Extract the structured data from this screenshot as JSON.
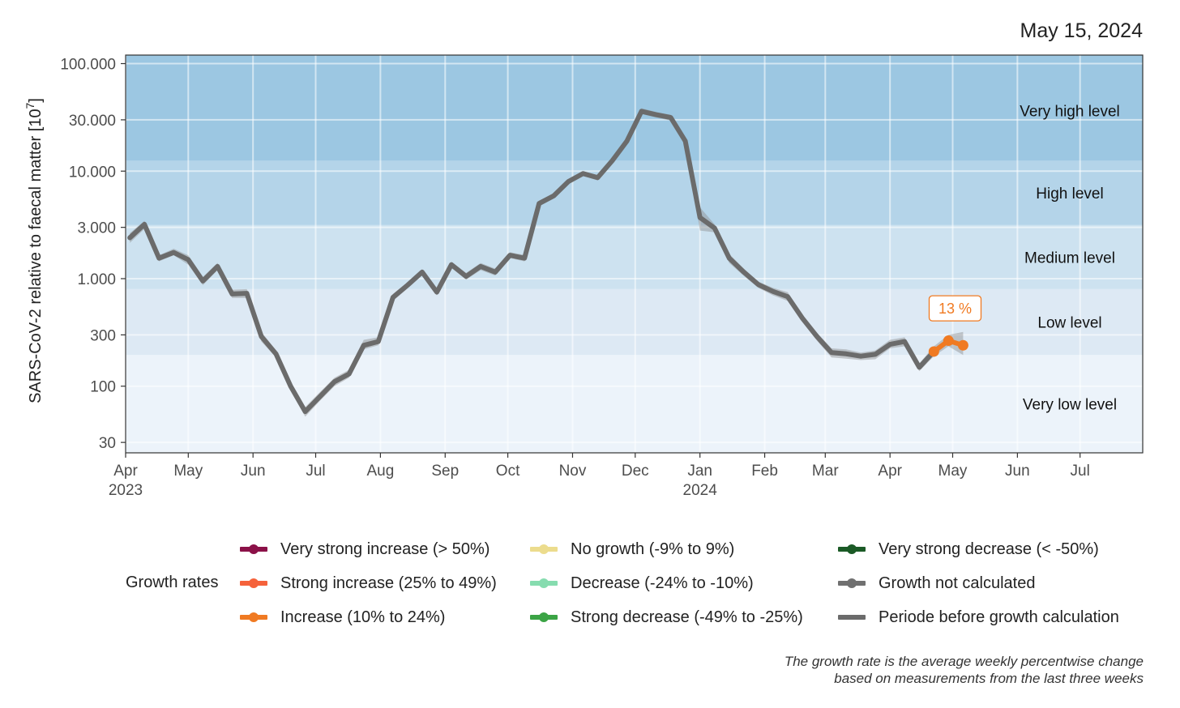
{
  "date": "May 15, 2024",
  "chart_data": {
    "type": "line",
    "title": "",
    "xlabel": "",
    "ylabel": "SARS-CoV-2 relative to faecal matter [10",
    "ylabel_sup": "7",
    "ylabel_close": "]",
    "yscale": "log",
    "ylim": [
      24,
      120000
    ],
    "xlim": [
      "2023-04-01",
      "2024-07-31"
    ],
    "yticks": [
      {
        "value": 100000,
        "label": "100.000"
      },
      {
        "value": 30000,
        "label": "30.000"
      },
      {
        "value": 10000,
        "label": "10.000"
      },
      {
        "value": 3000,
        "label": "3.000"
      },
      {
        "value": 1000,
        "label": "1.000"
      },
      {
        "value": 300,
        "label": "300"
      },
      {
        "value": 100,
        "label": "100"
      },
      {
        "value": 30,
        "label": "30"
      }
    ],
    "xticks": [
      {
        "date": "2023-04-01",
        "label": "Apr",
        "year": "2023"
      },
      {
        "date": "2023-05-01",
        "label": "May",
        "year": ""
      },
      {
        "date": "2023-06-01",
        "label": "Jun",
        "year": ""
      },
      {
        "date": "2023-07-01",
        "label": "Jul",
        "year": ""
      },
      {
        "date": "2023-08-01",
        "label": "Aug",
        "year": ""
      },
      {
        "date": "2023-09-01",
        "label": "Sep",
        "year": ""
      },
      {
        "date": "2023-10-01",
        "label": "Oct",
        "year": ""
      },
      {
        "date": "2023-11-01",
        "label": "Nov",
        "year": ""
      },
      {
        "date": "2023-12-01",
        "label": "Dec",
        "year": ""
      },
      {
        "date": "2024-01-01",
        "label": "Jan",
        "year": "2024"
      },
      {
        "date": "2024-02-01",
        "label": "Feb",
        "year": ""
      },
      {
        "date": "2024-03-01",
        "label": "Mar",
        "year": ""
      },
      {
        "date": "2024-04-01",
        "label": "Apr",
        "year": ""
      },
      {
        "date": "2024-05-01",
        "label": "May",
        "year": ""
      },
      {
        "date": "2024-06-01",
        "label": "Jun",
        "year": ""
      },
      {
        "date": "2024-07-01",
        "label": "Jul",
        "year": ""
      }
    ],
    "bands": [
      {
        "name": "Very low level",
        "from": 24,
        "to": 195,
        "color": "#ecf3fa"
      },
      {
        "name": "Low level",
        "from": 195,
        "to": 800,
        "color": "#dde9f4"
      },
      {
        "name": "Medium level",
        "from": 800,
        "to": 3150,
        "color": "#cde2f0"
      },
      {
        "name": "High level",
        "from": 3150,
        "to": 12500,
        "color": "#b4d4e9"
      },
      {
        "name": "Very high level",
        "from": 12500,
        "to": 120000,
        "color": "#9cc7e2"
      }
    ],
    "series": [
      {
        "name": "Periode before growth calculation",
        "color": "#6b6b6b",
        "x": [
          "2023-04-03",
          "2023-04-10",
          "2023-04-17",
          "2023-04-24",
          "2023-05-01",
          "2023-05-08",
          "2023-05-15",
          "2023-05-22",
          "2023-05-29",
          "2023-06-05",
          "2023-06-12",
          "2023-06-19",
          "2023-06-26",
          "2023-07-03",
          "2023-07-10",
          "2023-07-17",
          "2023-07-24",
          "2023-07-31",
          "2023-08-07",
          "2023-08-14",
          "2023-08-21",
          "2023-08-28",
          "2023-09-04",
          "2023-09-11",
          "2023-09-18",
          "2023-09-25",
          "2023-10-02",
          "2023-10-09",
          "2023-10-16",
          "2023-10-23",
          "2023-10-30",
          "2023-11-06",
          "2023-11-13",
          "2023-11-20",
          "2023-11-27",
          "2023-12-04",
          "2023-12-11",
          "2023-12-18",
          "2023-12-25",
          "2024-01-01",
          "2024-01-08",
          "2024-01-15",
          "2024-01-22",
          "2024-01-29",
          "2024-02-05",
          "2024-02-12",
          "2024-02-19",
          "2024-02-26",
          "2024-03-04",
          "2024-03-11",
          "2024-03-18",
          "2024-03-25",
          "2024-04-01",
          "2024-04-08",
          "2024-04-15",
          "2024-04-22"
        ],
        "y": [
          2400,
          3200,
          1550,
          1750,
          1500,
          950,
          1300,
          720,
          730,
          290,
          200,
          100,
          58,
          80,
          110,
          130,
          240,
          260,
          670,
          870,
          1150,
          750,
          1350,
          1050,
          1300,
          1150,
          1650,
          1550,
          5000,
          5900,
          8000,
          9500,
          8700,
          12500,
          19000,
          36000,
          33500,
          31500,
          19000,
          3700,
          2950,
          1550,
          1150,
          880,
          760,
          680,
          430,
          290,
          205,
          200,
          190,
          198,
          245,
          260,
          150,
          210
        ],
        "lower": [
          2150,
          2900,
          1450,
          1650,
          1350,
          870,
          1200,
          660,
          660,
          260,
          185,
          92,
          52,
          73,
          100,
          120,
          220,
          240,
          620,
          810,
          1080,
          700,
          1260,
          980,
          1200,
          1070,
          1550,
          1450,
          4700,
          5600,
          7600,
          9000,
          8200,
          11800,
          18000,
          34000,
          31500,
          29500,
          17500,
          2800,
          2700,
          1400,
          1060,
          820,
          700,
          620,
          400,
          265,
          185,
          180,
          175,
          178,
          225,
          235,
          138,
          190
        ],
        "upper": [
          2650,
          3450,
          1650,
          1900,
          1650,
          1040,
          1400,
          790,
          800,
          320,
          216,
          110,
          64,
          88,
          120,
          142,
          270,
          285,
          720,
          930,
          1230,
          810,
          1440,
          1130,
          1400,
          1240,
          1760,
          1660,
          5300,
          6200,
          8400,
          10000,
          9200,
          13200,
          20000,
          38500,
          35500,
          33500,
          20500,
          4600,
          3200,
          1700,
          1240,
          940,
          820,
          750,
          460,
          315,
          225,
          220,
          205,
          215,
          270,
          285,
          163,
          235
        ]
      },
      {
        "name": "Increase (10% to 24%)",
        "color": "#f07a22",
        "x": [
          "2024-04-22",
          "2024-04-29",
          "2024-05-06"
        ],
        "y": [
          210,
          265,
          240
        ],
        "lower": [
          190,
          235,
          195
        ],
        "upper": [
          235,
          300,
          320
        ]
      }
    ],
    "annotations": [
      {
        "text": "13 %",
        "x": "2024-05-01",
        "y": 530,
        "color": "#f07a22"
      }
    ],
    "legend_title": "Growth rates",
    "legend": [
      {
        "label": "Very strong increase (> 50%)",
        "color": "#8b1148",
        "dot": true
      },
      {
        "label": "Strong increase (25% to 49%)",
        "color": "#f5623b",
        "dot": true
      },
      {
        "label": "Increase (10% to 24%)",
        "color": "#f07a22",
        "dot": true
      },
      {
        "label": "No growth (-9% to 9%)",
        "color": "#ecdc8d",
        "dot": true
      },
      {
        "label": "Decrease (-24% to -10%)",
        "color": "#86dcaf",
        "dot": true
      },
      {
        "label": "Strong decrease (-49% to -25%)",
        "color": "#3ba445",
        "dot": true
      },
      {
        "label": "Very strong decrease (< -50%)",
        "color": "#1b5a26",
        "dot": true
      },
      {
        "label": "Growth not calculated",
        "color": "#707070",
        "dot": true
      },
      {
        "label": "Periode before growth calculation",
        "color": "#6b6b6b",
        "dot": false
      }
    ],
    "legend_position": "bottom"
  },
  "footnote": {
    "line1": "The growth rate is the average weekly percentwise change",
    "line2": "based on measurements from the last three weeks"
  }
}
